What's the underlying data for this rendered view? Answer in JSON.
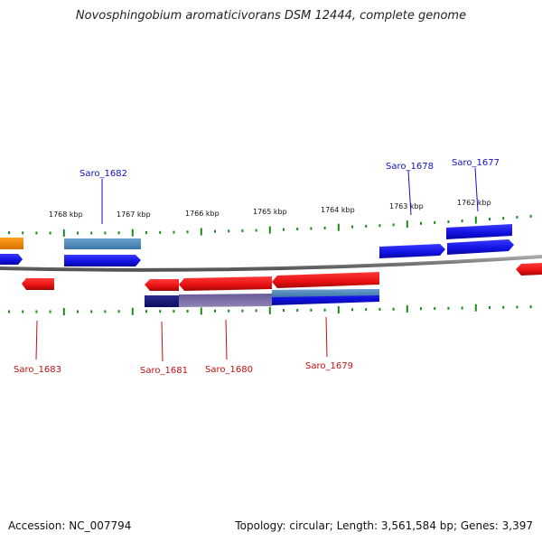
{
  "title": "Novosphingobium aromaticivorans DSM 12444, complete genome",
  "footer": {
    "accession": "Accession: NC_007794",
    "topology": "Topology: circular; Length: 3,561,584 bp; Genes: 3,397"
  },
  "colors": {
    "forward_gene": "#1010e8",
    "reverse_gene": "#e81010",
    "rna_gene": "#f08c00",
    "highlight_gene": "#4a86b8",
    "tick": "#1a8a1a",
    "backbone": "#8a8a8a"
  },
  "ticks": [
    {
      "label": "1768 kbp"
    },
    {
      "label": "1767 kbp"
    },
    {
      "label": "1766 kbp"
    },
    {
      "label": "1765 kbp"
    },
    {
      "label": "1764 kbp"
    },
    {
      "label": "1763 kbp"
    },
    {
      "label": "1762 kbp"
    }
  ],
  "gene_labels": [
    {
      "name": "Saro_1682",
      "strand": "forward"
    },
    {
      "name": "Saro_1678",
      "strand": "forward"
    },
    {
      "name": "Saro_1677",
      "strand": "forward"
    },
    {
      "name": "Saro_1683",
      "strand": "reverse"
    },
    {
      "name": "Saro_1681",
      "strand": "reverse"
    },
    {
      "name": "Saro_1680",
      "strand": "reverse"
    },
    {
      "name": "Saro_1679",
      "strand": "reverse"
    }
  ]
}
